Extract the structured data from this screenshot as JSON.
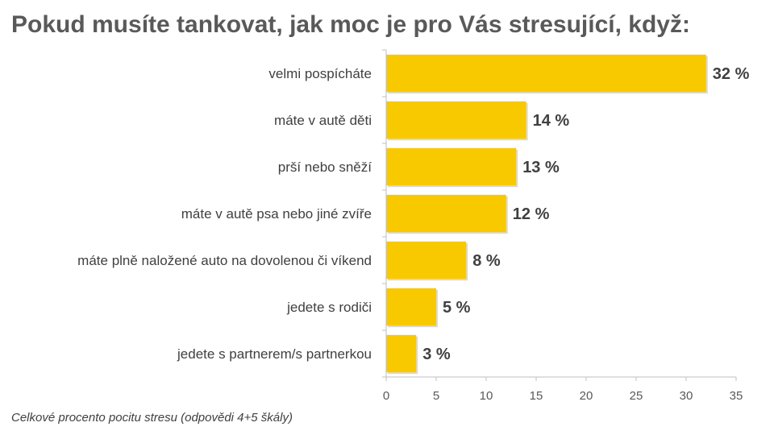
{
  "chart_data": {
    "type": "bar",
    "orientation": "horizontal",
    "title": "Pokud musíte tankovat, jak moc je pro Vás stresující, když:",
    "categories": [
      "velmi pospícháte",
      "máte v autě děti",
      "prší nebo sněží",
      "máte v autě psa nebo jiné zvíře",
      "máte plně naložené auto na dovolenou či víkend",
      "jedete s rodiči",
      "jedete s partnerem/s partnerkou"
    ],
    "values": [
      32,
      14,
      13,
      12,
      8,
      5,
      3
    ],
    "value_labels": [
      "32 %",
      "14 %",
      "13 %",
      "12 %",
      "8 %",
      "5 %",
      "3 %"
    ],
    "xlim": [
      0,
      35
    ],
    "xticks": [
      0,
      5,
      10,
      15,
      20,
      25,
      30,
      35
    ],
    "grid": false,
    "bar_color": "#F9C900",
    "footnote": "Celkové procento pocitu stresu (odpovědi 4+5 škály)"
  }
}
